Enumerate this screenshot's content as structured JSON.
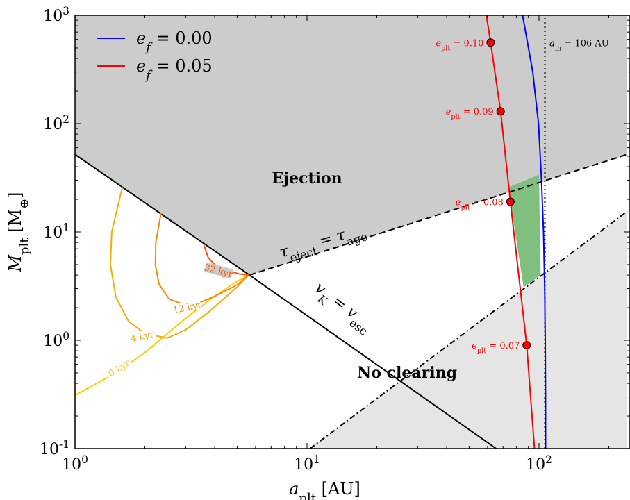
{
  "chart_data": {
    "type": "line",
    "xscale": "log",
    "yscale": "log",
    "xlim": [
      1,
      240
    ],
    "ylim": [
      0.1,
      1000
    ],
    "xlabel": "a_plt [AU]",
    "ylabel": "M_plt [M_⊕]",
    "x_ticks": [
      {
        "value": 1,
        "label": "10^0"
      },
      {
        "value": 10,
        "label": "10^1"
      },
      {
        "value": 100,
        "label": "10^2"
      }
    ],
    "y_ticks": [
      {
        "value": 0.1,
        "label": "10^-1"
      },
      {
        "value": 1,
        "label": "10^0"
      },
      {
        "value": 10,
        "label": "10^1"
      },
      {
        "value": 100,
        "label": "10^2"
      },
      {
        "value": 1000,
        "label": "10^3"
      }
    ],
    "legend": {
      "placement": "top-left",
      "entries": [
        {
          "label": "e_f = 0.00",
          "color": "#0000ff"
        },
        {
          "label": "e_f = 0.05",
          "color": "#ff0000"
        }
      ]
    },
    "regions": [
      {
        "label": "Ejection",
        "x": 10,
        "y": 28,
        "color": "#cccccc"
      },
      {
        "label": "No clearing",
        "x": 27,
        "y": 0.45,
        "color": "#e5e5e5"
      }
    ],
    "boundary_lines": [
      {
        "label": "v_K = v_esc",
        "style": "solid",
        "color": "#000000",
        "points": [
          [
            1,
            52
          ],
          [
            5.65,
            4.0
          ],
          [
            87,
            0.065
          ]
        ]
      },
      {
        "label": "τ_eject = τ_age",
        "style": "dashed",
        "color": "#000000",
        "points": [
          [
            5.65,
            4.0
          ],
          [
            240,
            52
          ]
        ]
      },
      {
        "label": "no-clearing boundary",
        "style": "dashdot",
        "color": "#000000",
        "points": [
          [
            10.3,
            0.1
          ],
          [
            240,
            15.5
          ]
        ]
      },
      {
        "label": "a_in = 106 AU",
        "style": "dotted",
        "color": "#000000",
        "points": [
          [
            106,
            0.1
          ],
          [
            106,
            1000
          ]
        ]
      }
    ],
    "series": [
      {
        "name": "e_f = 0.00",
        "color": "#0000ff",
        "x": [
          85,
          94,
          99.5,
          102.5,
          104.6,
          105.8,
          106.4,
          106.7,
          106.8
        ],
        "y": [
          1000,
          300,
          100,
          30,
          10,
          3,
          1,
          0.3,
          0.1
        ]
      },
      {
        "name": "e_f = 0.05",
        "color": "#ff0000",
        "x": [
          59.3,
          61.9,
          68.3,
          75.3,
          88.5,
          95.6
        ],
        "y": [
          1000,
          560,
          130,
          19,
          0.9,
          0.1
        ]
      }
    ],
    "marked_points": [
      {
        "label": "e_plt = 0.10",
        "x": 61.9,
        "y": 560
      },
      {
        "label": "e_plt = 0.09",
        "x": 68.3,
        "y": 130
      },
      {
        "label": "e_plt = 0.08",
        "x": 75.3,
        "y": 19
      },
      {
        "label": "e_plt = 0.07",
        "x": 88.5,
        "y": 0.9
      }
    ],
    "age_contours": [
      {
        "label": "0 kyr",
        "color": "#ffcc00",
        "x": [
          1.0,
          1.5,
          2.0,
          3.0,
          4.0,
          5.0,
          5.6
        ],
        "y": [
          0.31,
          0.5,
          0.77,
          1.6,
          2.55,
          3.5,
          4.0
        ]
      },
      {
        "label": "4 kyr",
        "color": "#ffaa00",
        "x": [
          1.6,
          1.44,
          1.42,
          1.5,
          1.7,
          2.0,
          2.5,
          3.0,
          3.8,
          5.0,
          5.6
        ],
        "y": [
          26,
          10,
          5,
          2.5,
          1.5,
          1.15,
          1.05,
          1.25,
          1.85,
          3.1,
          4.0
        ]
      },
      {
        "label": "12 kyr",
        "color": "#ff8800",
        "x": [
          2.35,
          2.23,
          2.22,
          2.3,
          2.55,
          3.0,
          3.4,
          4.0,
          5.0,
          5.6
        ],
        "y": [
          15,
          8,
          5,
          3.3,
          2.4,
          2.1,
          2.2,
          2.55,
          3.25,
          4.0
        ]
      },
      {
        "label": "32 kyr",
        "color": "#ff5500",
        "x": [
          3.6,
          3.75,
          4.0,
          4.3,
          4.7,
          5.1,
          5.6
        ],
        "y": [
          7.5,
          5.8,
          5.0,
          4.6,
          4.3,
          4.1,
          4.0
        ]
      }
    ],
    "green_region": {
      "label": "",
      "color": "#7fbf7f",
      "vertices": [
        [
          73.8,
          25.8
        ],
        [
          100.0,
          33.8
        ],
        [
          101.7,
          4.0
        ],
        [
          85.8,
          3.08
        ]
      ]
    },
    "annotations": [
      {
        "text": "a_in = 106 AU"
      },
      {
        "text": "v_K = v_esc"
      },
      {
        "text": "τ_eject = τ_age"
      }
    ]
  }
}
